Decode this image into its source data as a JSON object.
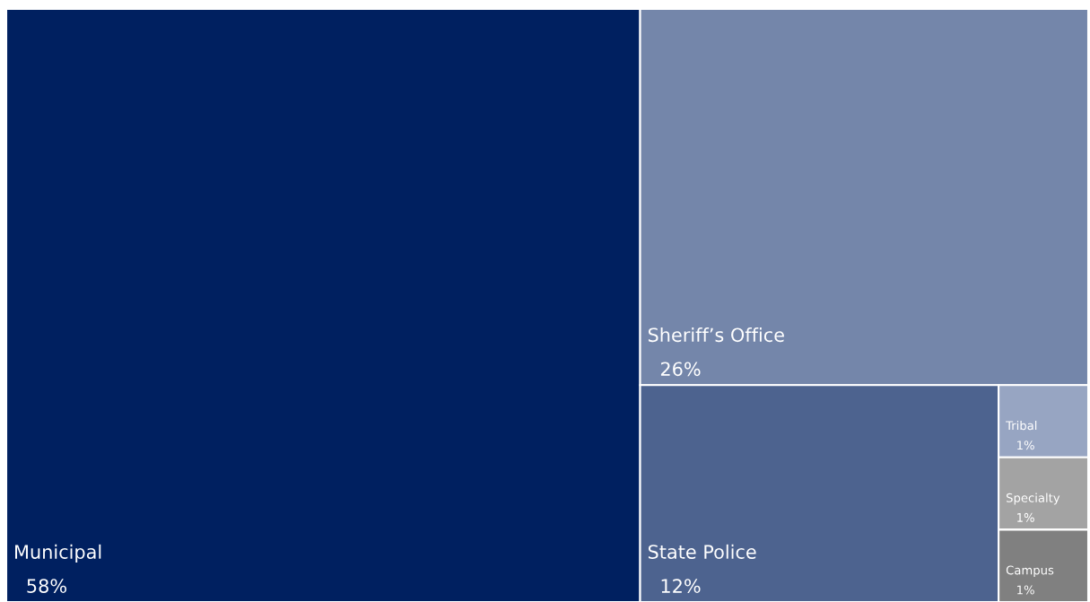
{
  "chart_data": {
    "type": "other",
    "categories": [
      "Municipal",
      "Sheriff’s Office",
      "State Police",
      "Tribal",
      "Specialty",
      "Campus"
    ],
    "values": [
      58,
      26,
      12,
      1,
      1,
      1
    ],
    "value_labels": [
      "58%",
      "26%",
      "12%",
      "1%",
      "1%",
      "1%"
    ],
    "colors": [
      "#002060",
      "#7486aa",
      "#4d638f",
      "#97a5c2",
      "#a3a3a3",
      "#808080"
    ]
  }
}
